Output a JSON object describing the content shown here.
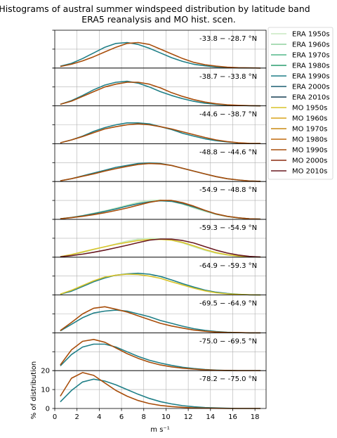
{
  "chart_data": {
    "type": "line",
    "title": "Histograms of austral summer windspeed distribution by latitude band",
    "subtitle": "ERA5 reanalysis and MO hist. scen.",
    "xlabel": "m s⁻¹",
    "ylabel": "% of distribution",
    "xlim": [
      0,
      19
    ],
    "ylim": [
      0,
      20
    ],
    "x_ticks": [
      0,
      2,
      4,
      6,
      8,
      10,
      12,
      14,
      16,
      18
    ],
    "y_ticks": [
      0,
      10,
      20
    ],
    "grid": true,
    "legend_position": "right",
    "x": [
      0.5,
      1.5,
      2.5,
      3.5,
      4.5,
      5.5,
      6.5,
      7.5,
      8.5,
      9.5,
      10.5,
      11.5,
      12.5,
      13.5,
      14.5,
      15.5,
      16.5,
      17.5,
      18.5
    ],
    "panels": [
      {
        "label": "-33.8 − -28.7 °N",
        "series": [
          {
            "name": "ERA 1990s",
            "values": [
              1.0,
              2.5,
              5.0,
              8.0,
              11.0,
              13.0,
              13.5,
              12.5,
              10.5,
              8.0,
              5.5,
              3.5,
              2.0,
              1.2,
              0.6,
              0.3,
              0.1,
              0.05,
              0.0
            ]
          },
          {
            "name": "MO 1990s",
            "values": [
              0.8,
              2.0,
              3.8,
              6.0,
              8.5,
              11.0,
              13.0,
              13.5,
              12.5,
              10.0,
              7.5,
              5.0,
              3.0,
              1.8,
              1.0,
              0.5,
              0.2,
              0.1,
              0.0
            ]
          }
        ]
      },
      {
        "label": "-38.7 − -33.8 °N",
        "series": [
          {
            "name": "ERA 1990s",
            "values": [
              0.8,
              2.8,
              5.5,
              8.5,
              11.0,
              12.5,
              13.0,
              12.0,
              10.0,
              7.5,
              5.5,
              3.8,
              2.4,
              1.4,
              0.8,
              0.4,
              0.2,
              0.1,
              0.0
            ]
          },
          {
            "name": "MO 1990s",
            "values": [
              0.8,
              2.5,
              5.0,
              7.5,
              10.0,
              11.5,
              12.5,
              12.5,
              11.5,
              9.5,
              7.0,
              5.0,
              3.3,
              2.0,
              1.1,
              0.6,
              0.3,
              0.1,
              0.0
            ]
          }
        ]
      },
      {
        "label": "-44.6 − -38.7 °N",
        "series": [
          {
            "name": "ERA 1990s",
            "values": [
              0.5,
              2.0,
              4.0,
              6.5,
              8.5,
              10.0,
              11.0,
              11.0,
              10.5,
              9.0,
              7.5,
              5.5,
              4.0,
              2.6,
              1.6,
              0.9,
              0.4,
              0.2,
              0.1
            ]
          },
          {
            "name": "MO 1990s",
            "values": [
              0.5,
              2.0,
              3.8,
              5.8,
              7.8,
              9.0,
              10.0,
              10.5,
              10.0,
              9.0,
              7.8,
              6.3,
              4.8,
              3.3,
              2.0,
              1.1,
              0.5,
              0.2,
              0.1
            ]
          }
        ]
      },
      {
        "label": "-48.8 − -44.6 °N",
        "series": [
          {
            "name": "ERA 1990s",
            "values": [
              0.4,
              1.5,
              3.0,
              4.5,
              6.0,
              7.5,
              8.5,
              9.5,
              9.8,
              9.5,
              8.5,
              7.0,
              5.5,
              4.0,
              2.6,
              1.5,
              0.8,
              0.3,
              0.1
            ]
          },
          {
            "name": "MO 1990s",
            "values": [
              0.4,
              1.5,
              2.8,
              4.0,
              5.5,
              6.8,
              8.0,
              9.0,
              9.5,
              9.3,
              8.5,
              7.0,
              5.5,
              4.0,
              2.6,
              1.5,
              0.8,
              0.3,
              0.1
            ]
          }
        ]
      },
      {
        "label": "-54.9 − -48.8 °N",
        "series": [
          {
            "name": "ERA 1950s",
            "values": [
              0.3,
              1.0,
              2.0,
              3.3,
              4.5,
              6.0,
              7.5,
              9.0,
              10.0,
              10.2,
              9.5,
              8.0,
              6.0,
              4.2,
              2.6,
              1.4,
              0.7,
              0.3,
              0.1
            ]
          },
          {
            "name": "ERA 1990s",
            "values": [
              0.3,
              1.0,
              1.9,
              3.0,
              4.2,
              5.5,
              7.0,
              8.3,
              9.3,
              9.8,
              9.5,
              8.3,
              6.5,
              4.6,
              2.8,
              1.6,
              0.8,
              0.3,
              0.1
            ]
          },
          {
            "name": "MO 1990s",
            "values": [
              0.3,
              0.9,
              1.6,
              2.5,
              3.5,
              4.7,
              6.0,
              7.5,
              9.0,
              10.0,
              10.0,
              8.8,
              7.0,
              4.8,
              2.9,
              1.6,
              0.8,
              0.3,
              0.1
            ]
          }
        ]
      },
      {
        "label": "-59.3 − -54.9 °N",
        "series": [
          {
            "name": "ERA 1950s",
            "values": [
              0.3,
              1.2,
              2.5,
              4.0,
              5.5,
              7.0,
              8.5,
              9.5,
              10.0,
              9.8,
              9.0,
              7.5,
              5.5,
              3.6,
              2.1,
              1.1,
              0.5,
              0.2,
              0.1
            ]
          },
          {
            "name": "MO 1950s",
            "values": [
              0.3,
              1.4,
              2.8,
              4.2,
              5.5,
              6.8,
              7.8,
              8.8,
              9.3,
              9.4,
              9.0,
              7.8,
              6.0,
              4.0,
              2.4,
              1.3,
              0.6,
              0.2,
              0.1
            ]
          },
          {
            "name": "MO 2010s",
            "values": [
              0.2,
              0.8,
              1.6,
              2.6,
              3.7,
              5.0,
              6.3,
              7.7,
              9.0,
              9.6,
              9.5,
              8.8,
              7.5,
              5.6,
              3.7,
              2.2,
              1.1,
              0.4,
              0.1
            ]
          }
        ]
      },
      {
        "label": "-64.9 − -59.3 °N",
        "series": [
          {
            "name": "ERA 1990s",
            "values": [
              0.4,
              2.0,
              4.5,
              7.0,
              9.0,
              10.5,
              11.2,
              11.5,
              11.0,
              9.8,
              8.0,
              6.0,
              4.2,
              2.6,
              1.5,
              0.8,
              0.4,
              0.1,
              0.0
            ]
          },
          {
            "name": "MO 1950s",
            "values": [
              0.5,
              2.5,
              5.0,
              7.5,
              9.5,
              10.5,
              11.0,
              10.8,
              10.0,
              8.8,
              7.0,
              5.3,
              3.6,
              2.2,
              1.2,
              0.6,
              0.3,
              0.1,
              0.0
            ]
          }
        ]
      },
      {
        "label": "-69.5 − -64.9 °N",
        "series": [
          {
            "name": "ERA 1990s",
            "values": [
              1.0,
              4.5,
              8.0,
              10.5,
              11.5,
              12.0,
              11.5,
              10.0,
              8.5,
              6.5,
              5.0,
              3.5,
              2.2,
              1.3,
              0.7,
              0.3,
              0.1,
              0.0,
              0.0
            ]
          },
          {
            "name": "MO 1990s",
            "values": [
              1.2,
              5.5,
              10.0,
              13.0,
              13.8,
              12.5,
              11.0,
              9.0,
              7.0,
              5.0,
              3.6,
              2.5,
              1.5,
              0.8,
              0.4,
              0.2,
              0.1,
              0.0,
              0.0
            ]
          }
        ]
      },
      {
        "label": "-75.0 − -69.5 °N",
        "series": [
          {
            "name": "ERA 1990s",
            "values": [
              2.5,
              8.5,
              12.5,
              14.0,
              14.0,
              12.5,
              10.0,
              7.5,
              5.5,
              4.0,
              2.8,
              1.8,
              1.1,
              0.6,
              0.3,
              0.1,
              0.0,
              0.0,
              0.0
            ]
          },
          {
            "name": "MO 1990s",
            "values": [
              3.0,
              11.0,
              15.5,
              16.5,
              15.0,
              12.0,
              9.0,
              6.5,
              4.5,
              3.0,
              2.0,
              1.3,
              0.8,
              0.4,
              0.2,
              0.1,
              0.0,
              0.0,
              0.0
            ]
          }
        ]
      },
      {
        "label": "-78.2 − -75.0 °N",
        "series": [
          {
            "name": "ERA 1990s",
            "values": [
              3.5,
              9.5,
              14.0,
              15.5,
              14.5,
              12.5,
              10.0,
              7.5,
              5.3,
              3.6,
              2.4,
              1.5,
              0.9,
              0.5,
              0.3,
              0.1,
              0.0,
              0.0,
              0.0
            ]
          },
          {
            "name": "MO 1990s",
            "values": [
              6.5,
              16.0,
              19.0,
              17.5,
              13.5,
              9.5,
              6.5,
              4.2,
              2.6,
              1.6,
              1.0,
              0.6,
              0.3,
              0.2,
              0.1,
              0.0,
              0.0,
              0.0,
              0.0
            ]
          }
        ]
      }
    ]
  },
  "legend": [
    {
      "name": "ERA 1950s",
      "color": "#c7e9c0"
    },
    {
      "name": "ERA 1960s",
      "color": "#8fd19e"
    },
    {
      "name": "ERA 1970s",
      "color": "#52b788"
    },
    {
      "name": "ERA 1980s",
      "color": "#2a9d6e"
    },
    {
      "name": "ERA 1990s",
      "color": "#1f7f87"
    },
    {
      "name": "ERA 2000s",
      "color": "#1b5f72"
    },
    {
      "name": "ERA 2010s",
      "color": "#143d52"
    },
    {
      "name": "MO 1950s",
      "color": "#d9c42a"
    },
    {
      "name": "MO 1960s",
      "color": "#d8a41a"
    },
    {
      "name": "MO 1970s",
      "color": "#c88a12"
    },
    {
      "name": "MO 1980s",
      "color": "#c06a0c"
    },
    {
      "name": "MO 1990s",
      "color": "#a84d0a"
    },
    {
      "name": "MO 2000s",
      "color": "#8c2a10"
    },
    {
      "name": "MO 2010s",
      "color": "#6a1a22"
    }
  ]
}
